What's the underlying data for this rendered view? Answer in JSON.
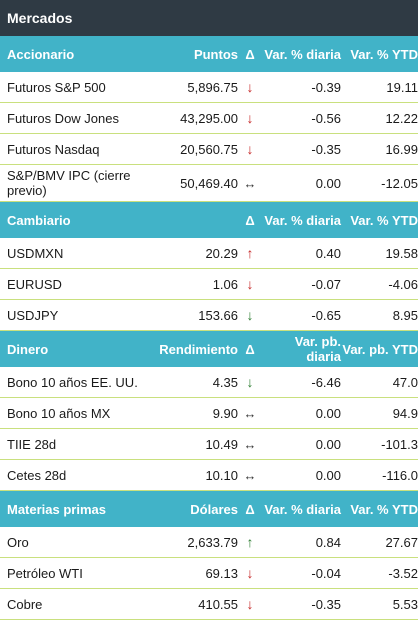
{
  "title": "Mercados",
  "colors": {
    "title_bg": "#2f3a44",
    "header_bg": "#41b3c8",
    "row_divider": "#c9e07e",
    "arrow_red": "#c62828",
    "arrow_green": "#2e7d32"
  },
  "sections": {
    "accionario": {
      "header": {
        "name": "Accionario",
        "value_col": "Puntos",
        "delta": "Δ",
        "daily": "Var. % diaria",
        "ytd": "Var. % YTD"
      },
      "rows": [
        {
          "name": "Futuros S&P 500",
          "value": "5,896.75",
          "arrow": "↓",
          "daily": "-0.39",
          "ytd": "19.11"
        },
        {
          "name": "Futuros Dow Jones",
          "value": "43,295.00",
          "arrow": "↓",
          "daily": "-0.56",
          "ytd": "12.22"
        },
        {
          "name": "Futuros Nasdaq",
          "value": "20,560.75",
          "arrow": "↓",
          "daily": "-0.35",
          "ytd": "16.99"
        },
        {
          "name": "S&P/BMV IPC (cierre previo)",
          "value": "50,469.40",
          "arrow": "↔",
          "daily": "0.00",
          "ytd": "-12.05"
        }
      ]
    },
    "cambiario": {
      "header": {
        "name": "Cambiario",
        "value_col": "",
        "delta": "Δ",
        "daily": "Var. % diaria",
        "ytd": "Var. % YTD"
      },
      "rows": [
        {
          "name": "USDMXN",
          "value": "20.29",
          "arrow": "↑",
          "daily": "0.40",
          "ytd": "19.58"
        },
        {
          "name": "EURUSD",
          "value": "1.06",
          "arrow": "↓",
          "daily": "-0.07",
          "ytd": "-4.06"
        },
        {
          "name": "USDJPY",
          "value": "153.66",
          "arrow": "↓",
          "daily": "-0.65",
          "ytd": "8.95"
        }
      ]
    },
    "dinero": {
      "header": {
        "name": "Dinero",
        "value_col": "Rendimiento",
        "delta": "Δ",
        "daily": "Var. pb. diaria",
        "ytd": "Var. pb. YTD"
      },
      "rows": [
        {
          "name": "Bono 10 años EE. UU.",
          "value": "4.35",
          "arrow": "↓",
          "daily": "-6.46",
          "ytd": "47.0"
        },
        {
          "name": "Bono 10 años MX",
          "value": "9.90",
          "arrow": "↔",
          "daily": "0.00",
          "ytd": "94.9"
        },
        {
          "name": "TIIE 28d",
          "value": "10.49",
          "arrow": "↔",
          "daily": "0.00",
          "ytd": "-101.3"
        },
        {
          "name": "Cetes 28d",
          "value": "10.10",
          "arrow": "↔",
          "daily": "0.00",
          "ytd": "-116.0"
        }
      ]
    },
    "materias": {
      "header": {
        "name": "Materias primas",
        "value_col": "Dólares",
        "delta": "Δ",
        "daily": "Var. % diaria",
        "ytd": "Var. % YTD"
      },
      "rows": [
        {
          "name": "Oro",
          "value": "2,633.79",
          "arrow": "↑",
          "daily": "0.84",
          "ytd": "27.67"
        },
        {
          "name": "Petróleo WTI",
          "value": "69.13",
          "arrow": "↓",
          "daily": "-0.04",
          "ytd": "-3.52"
        },
        {
          "name": "Cobre",
          "value": "410.55",
          "arrow": "↓",
          "daily": "-0.35",
          "ytd": "5.53"
        }
      ]
    }
  }
}
